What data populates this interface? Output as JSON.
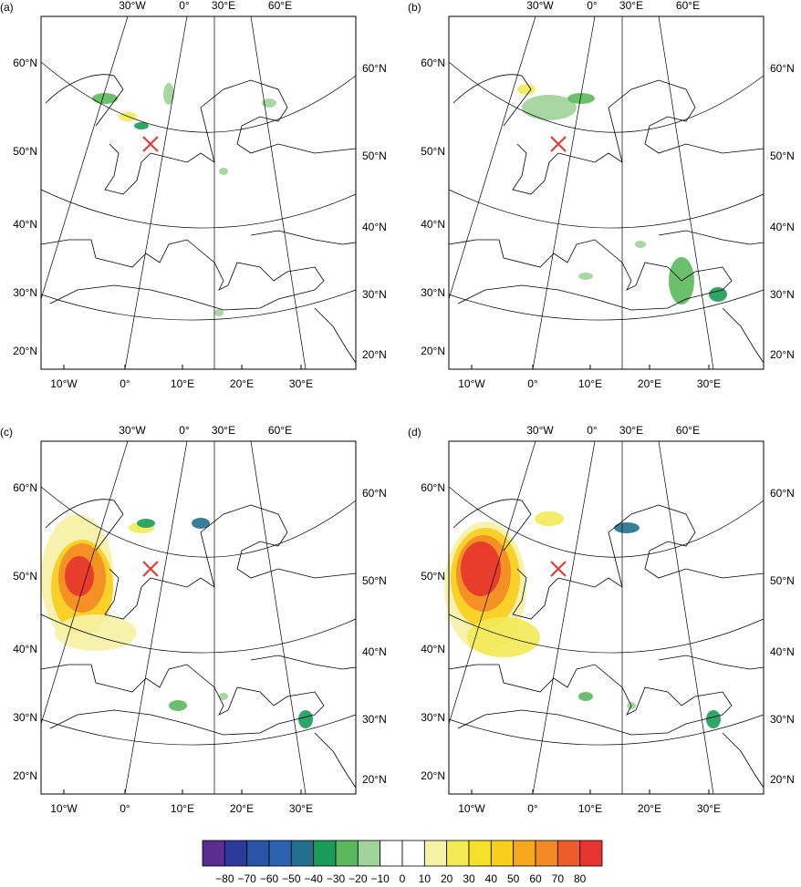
{
  "panels": [
    {
      "label": "(a)"
    },
    {
      "label": "(b)"
    },
    {
      "label": "(c)"
    },
    {
      "label": "(d)"
    }
  ],
  "map_axes": {
    "top": [
      "30°W",
      "0°",
      "30°E",
      "60°E"
    ],
    "left": [
      "60°N",
      "50°N",
      "40°N",
      "30°N",
      "20°N"
    ],
    "right": [
      "60°N",
      "50°N",
      "40°N",
      "30°N",
      "20°N"
    ],
    "bottom": [
      "10°W",
      "0°",
      "10°E",
      "20°E",
      "30°E"
    ]
  },
  "colorbar": {
    "colors": [
      "#5b2c8f",
      "#2e3a9a",
      "#2a54a8",
      "#2d62b0",
      "#23708e",
      "#1a9b57",
      "#5cb85c",
      "#9fd39a",
      "#ffffff",
      "#ffffff",
      "#f6f2a6",
      "#f2ea55",
      "#f5e02a",
      "#f9cd1a",
      "#f7a81d",
      "#f38a25",
      "#ef5c2c",
      "#e8342e"
    ],
    "labels": [
      "−80",
      "−70",
      "−60",
      "−50",
      "−40",
      "−30",
      "−20",
      "−10",
      "0",
      "10",
      "20",
      "30",
      "40",
      "50",
      "60",
      "70",
      "80"
    ]
  }
}
